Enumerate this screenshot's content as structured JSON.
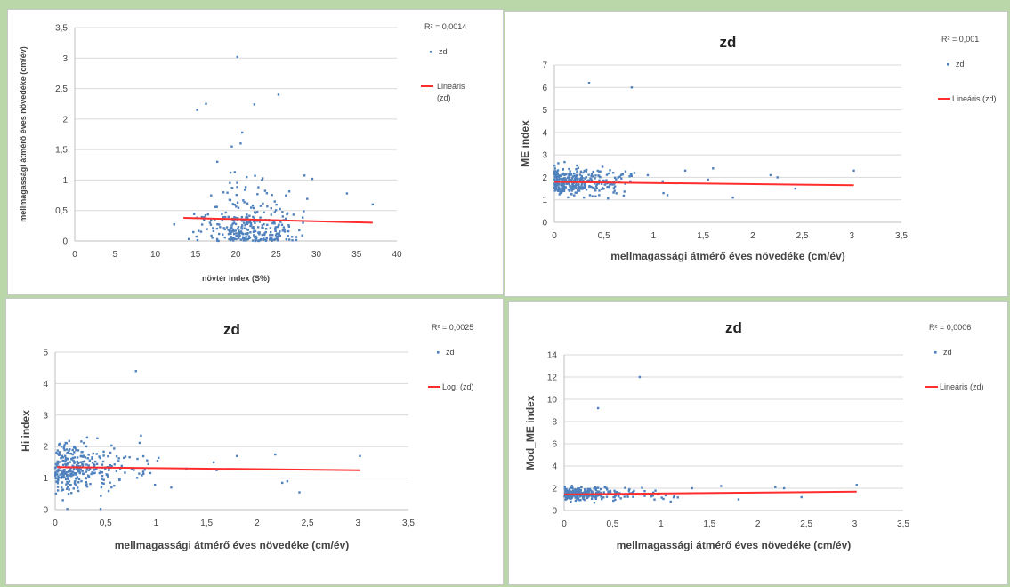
{
  "colors": {
    "points": "#4f81bd",
    "trend": "#ff2d2d",
    "background": "#b9d7a8"
  },
  "chart_data": [
    {
      "id": "c1",
      "type": "scatter",
      "title": "",
      "xlabel": "növtér index (S%)",
      "ylabel": "mellmagassági átmérő éves növedéke (cm/év)",
      "xlim": [
        0,
        40
      ],
      "ylim": [
        0,
        3.5
      ],
      "xticks": [
        0,
        5,
        10,
        15,
        20,
        25,
        30,
        35,
        40
      ],
      "yticks": [
        0,
        0.5,
        1,
        1.5,
        2,
        2.5,
        3,
        3.5
      ],
      "decimal_comma": true,
      "grid": true,
      "legend": {
        "position": "right",
        "r2": "R² = 0,0014",
        "series_label": "zd",
        "trend_label": "Lineáris (zd)"
      },
      "trendline": {
        "type": "linear",
        "x0": 13.5,
        "y0": 0.38,
        "x1": 37,
        "y1": 0.3
      },
      "gen": {
        "seed": 11,
        "n": 320,
        "x_mean": 21.5,
        "x_sd": 4.2,
        "x_min": 12,
        "x_max": 37,
        "y_scale": 0.33,
        "y_max": 1.2
      },
      "points": [
        [
          20.2,
          3.02
        ],
        [
          25.3,
          2.4
        ],
        [
          22.3,
          2.24
        ],
        [
          16.3,
          2.25
        ],
        [
          15.2,
          2.15
        ],
        [
          20.8,
          1.78
        ],
        [
          19.5,
          1.55
        ],
        [
          20.6,
          1.6
        ],
        [
          17.7,
          1.3
        ],
        [
          33.8,
          0.78
        ],
        [
          37.0,
          0.6
        ],
        [
          29.5,
          1.02
        ]
      ]
    },
    {
      "id": "c2",
      "type": "scatter",
      "title": "zd",
      "xlabel": "mellmagassági átmérő éves növedéke (cm/év)",
      "ylabel": "ME index",
      "xlim": [
        0,
        3.5
      ],
      "ylim": [
        0,
        7
      ],
      "xticks": [
        0,
        0.5,
        1,
        1.5,
        2,
        2.5,
        3,
        3.5
      ],
      "yticks": [
        0,
        1,
        2,
        3,
        4,
        5,
        6,
        7
      ],
      "decimal_comma": true,
      "grid": true,
      "legend": {
        "position": "right",
        "r2": "R² = 0,001",
        "series_label": "zd",
        "trend_label": "Lineáris (zd)"
      },
      "trendline": {
        "type": "linear",
        "x0": 0,
        "y0": 1.8,
        "x1": 3.02,
        "y1": 1.65
      },
      "gen": {
        "seed": 23,
        "n": 330,
        "x_scale": 0.3,
        "x_max": 1.2,
        "y_mean": 1.8,
        "y_sd": 0.42,
        "y_min": 0.9,
        "y_max": 3.3
      },
      "points": [
        [
          0.35,
          6.2
        ],
        [
          0.78,
          6.0
        ],
        [
          1.32,
          2.3
        ],
        [
          1.6,
          2.4
        ],
        [
          1.8,
          1.1
        ],
        [
          2.18,
          2.1
        ],
        [
          2.25,
          2.0
        ],
        [
          2.43,
          1.5
        ],
        [
          3.02,
          2.3
        ],
        [
          1.55,
          1.9
        ],
        [
          1.1,
          1.3
        ]
      ]
    },
    {
      "id": "c3",
      "type": "scatter",
      "title": "zd",
      "xlabel": "mellmagassági átmérő éves növedéke (cm/év)",
      "ylabel": "Hi index",
      "xlim": [
        0,
        3.5
      ],
      "ylim": [
        0,
        5
      ],
      "xticks": [
        0,
        0.5,
        1,
        1.5,
        2,
        2.5,
        3,
        3.5
      ],
      "yticks": [
        0,
        1,
        2,
        3,
        4,
        5
      ],
      "decimal_comma": true,
      "grid": true,
      "legend": {
        "position": "right",
        "r2": "R² = 0,0025",
        "series_label": "zd",
        "trend_label": "Log. (zd)"
      },
      "trendline": {
        "type": "log",
        "x0": 0.02,
        "y0": 1.35,
        "x1": 3.02,
        "y1": 1.25
      },
      "gen": {
        "seed": 37,
        "n": 320,
        "x_scale": 0.28,
        "x_max": 1.15,
        "y_mean": 1.35,
        "y_sd": 0.52,
        "y_min": 0.3,
        "y_max": 2.95
      },
      "points": [
        [
          0.8,
          4.4
        ],
        [
          0.85,
          2.35
        ],
        [
          0.12,
          0.02
        ],
        [
          0.45,
          0.02
        ],
        [
          1.57,
          1.5
        ],
        [
          1.6,
          1.25
        ],
        [
          1.8,
          1.7
        ],
        [
          2.18,
          1.75
        ],
        [
          2.25,
          0.85
        ],
        [
          2.3,
          0.9
        ],
        [
          2.42,
          0.55
        ],
        [
          3.02,
          1.7
        ],
        [
          1.15,
          0.7
        ],
        [
          1.3,
          1.3
        ]
      ]
    },
    {
      "id": "c4",
      "type": "scatter",
      "title": "zd",
      "xlabel": "mellmagassági átmérő éves növedéke (cm/év)",
      "ylabel": "Mod_ME index",
      "xlim": [
        0,
        3.5
      ],
      "ylim": [
        0,
        14
      ],
      "xticks": [
        0,
        0.5,
        1,
        1.5,
        2,
        2.5,
        3,
        3.5
      ],
      "yticks": [
        0,
        2,
        4,
        6,
        8,
        10,
        12,
        14
      ],
      "decimal_comma": true,
      "grid": true,
      "legend": {
        "position": "right",
        "r2": "R² = 0,0006",
        "series_label": "zd",
        "trend_label": "Lineáris (zd)"
      },
      "trendline": {
        "type": "linear",
        "x0": 0,
        "y0": 1.45,
        "x1": 3.02,
        "y1": 1.7
      },
      "gen": {
        "seed": 53,
        "n": 330,
        "x_scale": 0.3,
        "x_max": 1.2,
        "y_mean": 1.5,
        "y_sd": 0.38,
        "y_min": 0.7,
        "y_max": 3.2
      },
      "points": [
        [
          0.35,
          9.2
        ],
        [
          0.78,
          12.0
        ],
        [
          1.32,
          2.0
        ],
        [
          1.62,
          2.2
        ],
        [
          1.8,
          1.0
        ],
        [
          2.18,
          2.1
        ],
        [
          2.27,
          2.0
        ],
        [
          2.45,
          1.2
        ],
        [
          3.02,
          2.3
        ],
        [
          1.1,
          0.8
        ]
      ]
    }
  ]
}
